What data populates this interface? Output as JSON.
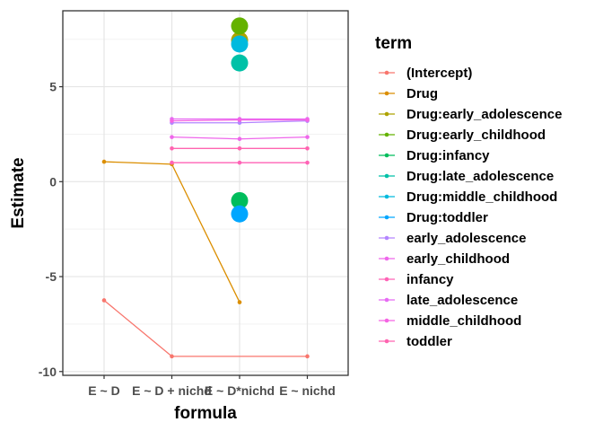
{
  "chart_data": {
    "type": "scatter",
    "xlabel": "formula",
    "ylabel": "Estimate",
    "legend_title": "term",
    "legend_placement": "right",
    "grid": true,
    "ylim": [
      -10.2,
      9.0
    ],
    "yticks": [
      -10,
      -5,
      0,
      5
    ],
    "categories": [
      "E ~ D",
      "E ~ D + nichd",
      "E ~ D*nichd",
      "E ~ nichd"
    ],
    "series": [
      {
        "name": "(Intercept)",
        "color": "#F8766D",
        "values": [
          -6.25,
          -9.2,
          null,
          -9.2
        ]
      },
      {
        "name": "Drug",
        "color": "#DB8E00",
        "values": [
          1.05,
          0.92,
          -6.35,
          null
        ]
      },
      {
        "name": "Drug:early_adolescence",
        "color": "#AEA200",
        "values": [
          null,
          null,
          7.45,
          null
        ]
      },
      {
        "name": "Drug:early_childhood",
        "color": "#64B200",
        "values": [
          null,
          null,
          8.2,
          null
        ]
      },
      {
        "name": "Drug:infancy",
        "color": "#00BD5C",
        "values": [
          null,
          null,
          -1.0,
          null
        ]
      },
      {
        "name": "Drug:late_adolescence",
        "color": "#00C1A7",
        "values": [
          null,
          null,
          6.25,
          null
        ]
      },
      {
        "name": "Drug:middle_childhood",
        "color": "#00BADE",
        "values": [
          null,
          null,
          7.25,
          null
        ]
      },
      {
        "name": "Drug:toddler",
        "color": "#00A6FF",
        "values": [
          null,
          null,
          -1.7,
          null
        ]
      },
      {
        "name": "early_adolescence",
        "color": "#B385FF",
        "values": [
          null,
          3.1,
          3.1,
          3.2
        ]
      },
      {
        "name": "early_childhood",
        "color": "#EF67EB",
        "values": [
          null,
          2.35,
          2.25,
          2.35
        ]
      },
      {
        "name": "infancy",
        "color": "#FF63B6",
        "values": [
          null,
          1.0,
          1.0,
          1.0
        ]
      },
      {
        "name": "late_adolescence",
        "color": "#E76BF3",
        "values": [
          null,
          3.3,
          3.3,
          3.3
        ]
      },
      {
        "name": "middle_childhood",
        "color": "#F564E3",
        "values": [
          null,
          3.2,
          3.25,
          3.25
        ]
      },
      {
        "name": "toddler",
        "color": "#FF64B0",
        "values": [
          null,
          1.75,
          1.75,
          1.75
        ]
      }
    ]
  }
}
